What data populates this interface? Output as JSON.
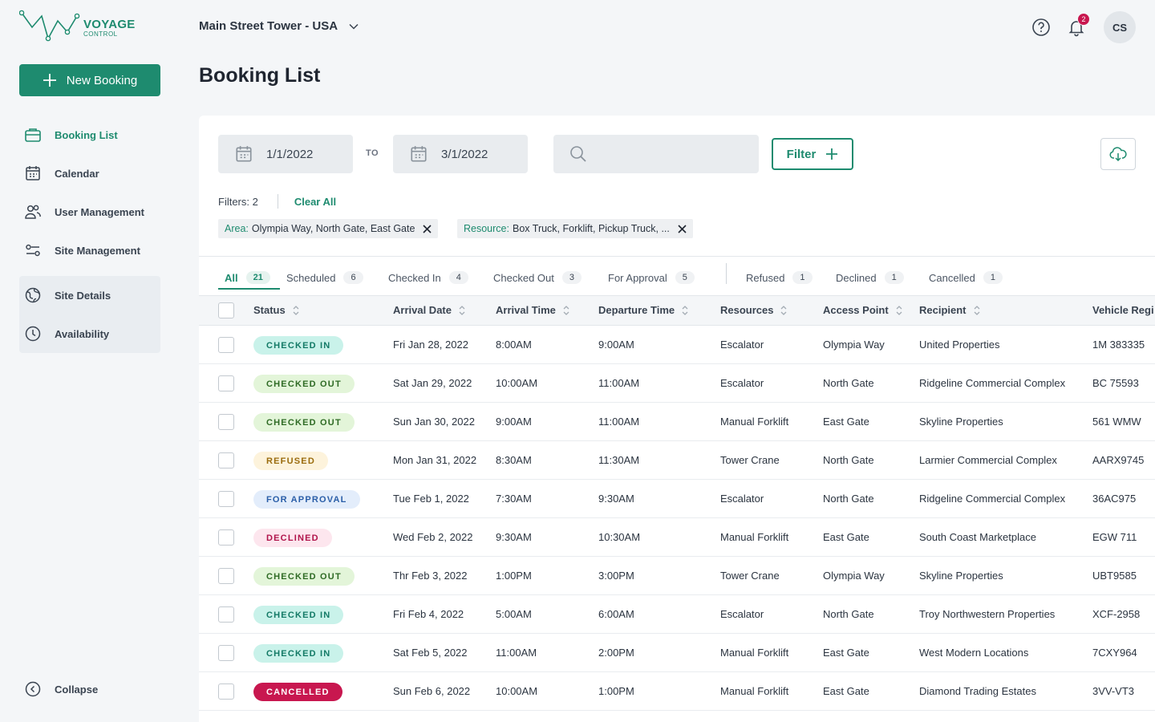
{
  "logo": {
    "line1": "VOYAGE",
    "line2": "CONTROL"
  },
  "sidebar": {
    "new_booking": "New Booking",
    "items": [
      {
        "label": "Booking List",
        "icon": "briefcase-icon",
        "active": true
      },
      {
        "label": "Calendar",
        "icon": "calendar-icon"
      },
      {
        "label": "User Management",
        "icon": "users-icon"
      },
      {
        "label": "Site Management",
        "icon": "sliders-icon"
      }
    ],
    "group_items": [
      {
        "label": "Site Details",
        "icon": "globe-icon"
      },
      {
        "label": "Availability",
        "icon": "clock-icon"
      }
    ],
    "collapse": "Collapse"
  },
  "header": {
    "site": "Main Street Tower - USA",
    "notifications": "2",
    "avatar": "CS"
  },
  "page_title": "Booking List",
  "filters": {
    "date_from": "1/1/2022",
    "to_label": "TO",
    "date_to": "3/1/2022",
    "search_placeholder": "",
    "filter_button": "Filter",
    "count_label": "Filters: 2",
    "clear_all": "Clear All",
    "chips": [
      {
        "key": "Area:",
        "value": "Olympia Way, North Gate, East Gate"
      },
      {
        "key": "Resource:",
        "value": "Box Truck, Forklift, Pickup Truck, ..."
      }
    ]
  },
  "tabs": [
    {
      "label": "All",
      "count": "21"
    },
    {
      "label": "Scheduled",
      "count": "6"
    },
    {
      "label": "Checked In",
      "count": "4"
    },
    {
      "label": "Checked Out",
      "count": "3"
    },
    {
      "label": "For Approval",
      "count": "5"
    },
    {
      "label": "Refused",
      "count": "1"
    },
    {
      "label": "Declined",
      "count": "1"
    },
    {
      "label": "Cancelled",
      "count": "1"
    }
  ],
  "columns": [
    "Status",
    "Arrival Date",
    "Arrival Time",
    "Departure Time",
    "Resources",
    "Access Point",
    "Recipient",
    "Vehicle Regi"
  ],
  "status_colors": {
    "CHECKED IN": {
      "bg": "#c9f2ea",
      "fg": "#137a66"
    },
    "CHECKED OUT": {
      "bg": "#e3f5d9",
      "fg": "#2f6b25"
    },
    "REFUSED": {
      "bg": "#fdf3dc",
      "fg": "#9a6b0d"
    },
    "FOR APPROVAL": {
      "bg": "#e3edfb",
      "fg": "#2a5ea8"
    },
    "DECLINED": {
      "bg": "#fde6ee",
      "fg": "#b0134a"
    },
    "CANCELLED": {
      "bg": "#c8174f",
      "fg": "#ffffff"
    }
  },
  "rows": [
    {
      "status": "CHECKED IN",
      "arrival_date": "Fri Jan 28, 2022",
      "arrival_time": "8:00AM",
      "departure_time": "9:00AM",
      "resource": "Escalator",
      "access_point": "Olympia Way",
      "recipient": "United Properties",
      "vehicle": "1M 383335"
    },
    {
      "status": "CHECKED OUT",
      "arrival_date": "Sat Jan 29, 2022",
      "arrival_time": "10:00AM",
      "departure_time": "11:00AM",
      "resource": "Escalator",
      "access_point": "North Gate",
      "recipient": "Ridgeline Commercial Complex",
      "vehicle": "BC 75593"
    },
    {
      "status": "CHECKED OUT",
      "arrival_date": "Sun Jan 30, 2022",
      "arrival_time": "9:00AM",
      "departure_time": "11:00AM",
      "resource": "Manual Forklift",
      "access_point": "East Gate",
      "recipient": "Skyline Properties",
      "vehicle": "561 WMW"
    },
    {
      "status": "REFUSED",
      "arrival_date": "Mon Jan 31, 2022",
      "arrival_time": "8:30AM",
      "departure_time": "11:30AM",
      "resource": "Tower Crane",
      "access_point": "North Gate",
      "recipient": "Larmier Commercial Complex",
      "vehicle": "AARX9745"
    },
    {
      "status": "FOR APPROVAL",
      "arrival_date": "Tue Feb 1, 2022",
      "arrival_time": "7:30AM",
      "departure_time": "9:30AM",
      "resource": "Escalator",
      "access_point": "North Gate",
      "recipient": "Ridgeline Commercial Complex",
      "vehicle": "36AC975"
    },
    {
      "status": "DECLINED",
      "arrival_date": "Wed Feb 2, 2022",
      "arrival_time": "9:30AM",
      "departure_time": "10:30AM",
      "resource": "Manual Forklift",
      "access_point": "East Gate",
      "recipient": "South Coast Marketplace",
      "vehicle": "EGW 711"
    },
    {
      "status": "CHECKED OUT",
      "arrival_date": "Thr Feb 3, 2022",
      "arrival_time": "1:00PM",
      "departure_time": "3:00PM",
      "resource": "Tower Crane",
      "access_point": "Olympia Way",
      "recipient": "Skyline Properties",
      "vehicle": "UBT9585"
    },
    {
      "status": "CHECKED IN",
      "arrival_date": "Fri Feb 4, 2022",
      "arrival_time": "5:00AM",
      "departure_time": "6:00AM",
      "resource": "Escalator",
      "access_point": "North Gate",
      "recipient": "Troy Northwestern Properties",
      "vehicle": "XCF-2958"
    },
    {
      "status": "CHECKED IN",
      "arrival_date": "Sat Feb 5, 2022",
      "arrival_time": "11:00AM",
      "departure_time": "2:00PM",
      "resource": "Manual Forklift",
      "access_point": "East Gate",
      "recipient": "West Modern Locations",
      "vehicle": "7CXY964"
    },
    {
      "status": "CANCELLED",
      "arrival_date": "Sun Feb 6, 2022",
      "arrival_time": "10:00AM",
      "departure_time": "1:00PM",
      "resource": "Manual Forklift",
      "access_point": "East Gate",
      "recipient": "Diamond Trading Estates",
      "vehicle": "3VV-VT3"
    }
  ]
}
